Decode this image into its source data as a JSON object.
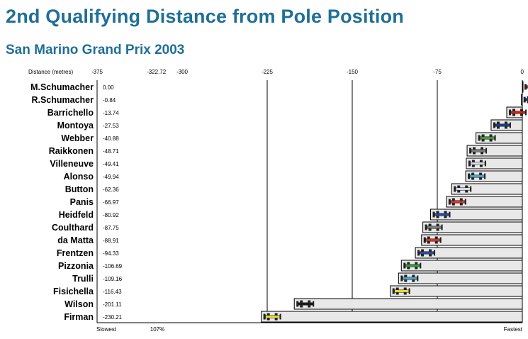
{
  "chart_data": {
    "type": "bar",
    "title": "2nd Qualifying Distance from Pole Position",
    "subtitle": "San Marino Grand Prix 2003",
    "xlabel": "Distance (metres)",
    "xlim": [
      -375,
      0
    ],
    "xticks": [
      "-375",
      "-322.72",
      "-300",
      "-225",
      "-150",
      "-75",
      "0"
    ],
    "xtick_values": [
      -375,
      -322.72,
      -300,
      -225,
      -150,
      -75,
      0
    ],
    "gridlines": [
      -225,
      -150,
      -75
    ],
    "bottom_labels": {
      "left": "Slowest",
      "marker": "107%",
      "right": "Fastest"
    },
    "bar_color": "#e8e8e8",
    "categories": [
      "M.Schumacher",
      "R.Schumacher",
      "Barrichello",
      "Montoya",
      "Webber",
      "Raikkonen",
      "Villeneuve",
      "Alonso",
      "Button",
      "Panis",
      "Heidfeld",
      "Coulthard",
      "da Matta",
      "Frentzen",
      "Pizzonia",
      "Trulli",
      "Fisichella",
      "Wilson",
      "Firman"
    ],
    "values": [
      0.0,
      -0.84,
      -13.74,
      -27.53,
      -40.88,
      -48.71,
      -49.41,
      -49.94,
      -62.36,
      -66.97,
      -80.92,
      -87.75,
      -88.91,
      -94.33,
      -106.69,
      -109.16,
      -116.43,
      -201.11,
      -230.21
    ],
    "value_labels": [
      "0.00",
      "-0.84",
      "-13.74",
      "-27.53",
      "-40.88",
      "-48.71",
      "-49.41",
      "-49.94",
      "-62.36",
      "-66.97",
      "-80.92",
      "-87.75",
      "-88.91",
      "-94.33",
      "-106.69",
      "-109.16",
      "-116.43",
      "-201.11",
      "-230.21"
    ],
    "team_colors": [
      "#d62010",
      "#1a3a8a",
      "#d62010",
      "#1a3a8a",
      "#3a9a3a",
      "#7a7a7a",
      "#d8d8e8",
      "#4aa0c8",
      "#d8d8e8",
      "#d83020",
      "#2a4aa0",
      "#7a7a7a",
      "#d83020",
      "#2a4aa0",
      "#3a9a3a",
      "#4aa0c8",
      "#e8d830",
      "#1a1a1a",
      "#e8d830"
    ]
  }
}
